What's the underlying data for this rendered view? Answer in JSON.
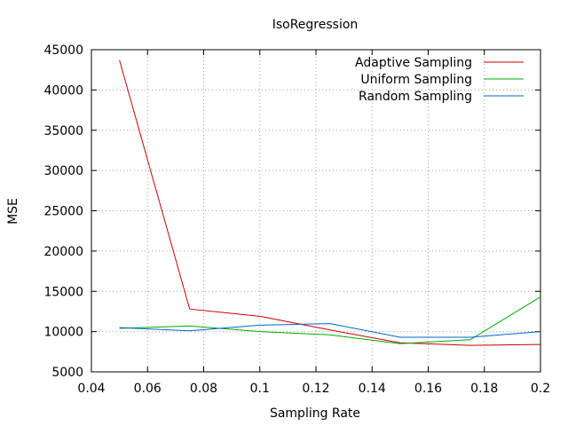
{
  "chart_data": {
    "type": "line",
    "title": "IsoRegression",
    "xlabel": "Sampling Rate",
    "ylabel": "MSE",
    "xlim": [
      0.04,
      0.2
    ],
    "ylim": [
      5000,
      45000
    ],
    "xticks": [
      0.04,
      0.06,
      0.08,
      0.1,
      0.12,
      0.14,
      0.16,
      0.18,
      0.2
    ],
    "xtick_labels": [
      "0.04",
      "0.06",
      "0.08",
      "0.1",
      "0.12",
      "0.14",
      "0.16",
      "0.18",
      "0.2"
    ],
    "yticks": [
      5000,
      10000,
      15000,
      20000,
      25000,
      30000,
      35000,
      40000,
      45000
    ],
    "ytick_labels": [
      "5000",
      "10000",
      "15000",
      "20000",
      "25000",
      "30000",
      "35000",
      "40000",
      "45000"
    ],
    "grid": true,
    "legend_position": "top-right",
    "x": [
      0.05,
      0.075,
      0.1,
      0.125,
      0.15,
      0.175,
      0.2
    ],
    "series": [
      {
        "name": "Adaptive Sampling",
        "color": "#cc0000",
        "values": [
          43700,
          12800,
          11900,
          10200,
          8600,
          8300,
          8400
        ]
      },
      {
        "name": "Uniform Sampling",
        "color": "#00aa00",
        "values": [
          10400,
          10700,
          10000,
          9600,
          8500,
          9000,
          14300
        ]
      },
      {
        "name": "Random Sampling",
        "color": "#0066cc",
        "values": [
          10500,
          10100,
          10800,
          11000,
          9300,
          9300,
          10000
        ]
      }
    ]
  }
}
